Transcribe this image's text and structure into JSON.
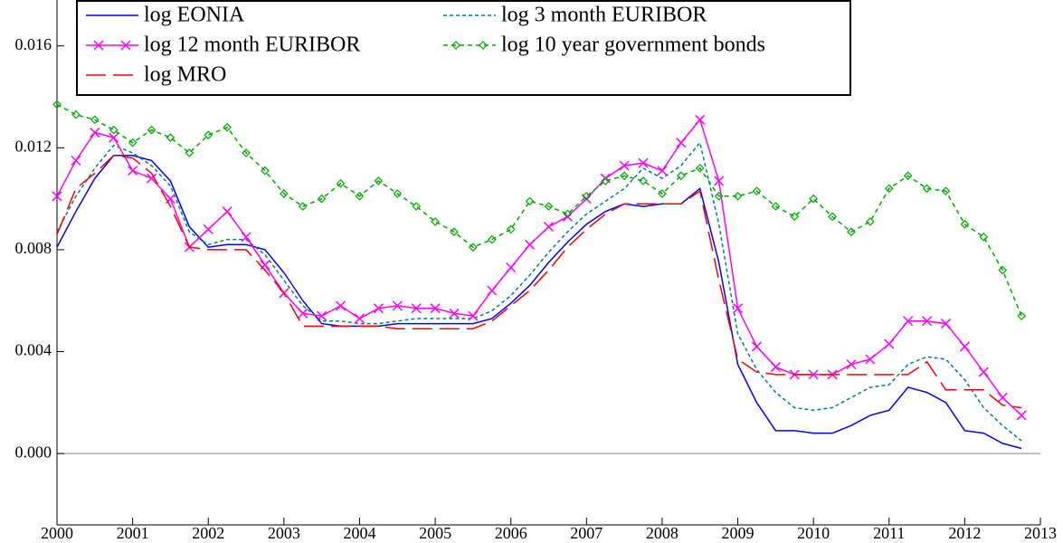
{
  "chart_data": {
    "type": "line",
    "x": [
      2000,
      2000.25,
      2000.5,
      2000.75,
      2001,
      2001.25,
      2001.5,
      2001.75,
      2002,
      2002.25,
      2002.5,
      2002.75,
      2003,
      2003.25,
      2003.5,
      2003.75,
      2004,
      2004.25,
      2004.5,
      2004.75,
      2005,
      2005.25,
      2005.5,
      2005.75,
      2006,
      2006.25,
      2006.5,
      2006.75,
      2007,
      2007.25,
      2007.5,
      2007.75,
      2008,
      2008.25,
      2008.5,
      2008.75,
      2009,
      2009.25,
      2009.5,
      2009.75,
      2010,
      2010.25,
      2010.5,
      2010.75,
      2011,
      2011.25,
      2011.5,
      2011.75,
      2012,
      2012.25,
      2012.5,
      2012.75
    ],
    "series": [
      {
        "name": "log EONIA",
        "color": "#0000ff",
        "line_style": "solid",
        "marker": "none",
        "values": [
          0.0081,
          0.0095,
          0.0108,
          0.0117,
          0.0117,
          0.0115,
          0.0107,
          0.0089,
          0.0081,
          0.0082,
          0.0082,
          0.008,
          0.0071,
          0.006,
          0.0051,
          0.005,
          0.005,
          0.005,
          0.0051,
          0.0051,
          0.0051,
          0.0051,
          0.0051,
          0.0053,
          0.0059,
          0.0066,
          0.0075,
          0.0083,
          0.009,
          0.0095,
          0.0098,
          0.0097,
          0.0098,
          0.0098,
          0.0104,
          0.0075,
          0.0035,
          0.002,
          0.0009,
          0.0009,
          0.0008,
          0.0008,
          0.0011,
          0.0015,
          0.0017,
          0.0026,
          0.0024,
          0.002,
          0.0009,
          0.0008,
          0.0004,
          0.0002
        ]
      },
      {
        "name": "log 3 month EURIBOR",
        "color": "#008080",
        "line_style": "dotted",
        "marker": "none",
        "values": [
          0.0087,
          0.0101,
          0.0112,
          0.0121,
          0.0118,
          0.0113,
          0.0105,
          0.0087,
          0.0082,
          0.0084,
          0.0084,
          0.0078,
          0.0068,
          0.0058,
          0.0052,
          0.0052,
          0.0051,
          0.0051,
          0.0052,
          0.0053,
          0.0053,
          0.0053,
          0.0053,
          0.0056,
          0.0062,
          0.007,
          0.0079,
          0.0087,
          0.0094,
          0.0099,
          0.0104,
          0.0112,
          0.0108,
          0.0113,
          0.0122,
          0.009,
          0.0047,
          0.0033,
          0.0024,
          0.0018,
          0.0017,
          0.0018,
          0.0022,
          0.0026,
          0.0027,
          0.0035,
          0.0038,
          0.0037,
          0.0029,
          0.0018,
          0.0011,
          0.0005
        ]
      },
      {
        "name": "log 12 month EURIBOR",
        "color": "#ff00ff",
        "line_style": "solid",
        "marker": "x",
        "values": [
          0.0101,
          0.0115,
          0.0126,
          0.0124,
          0.0111,
          0.0108,
          0.01,
          0.0081,
          0.0088,
          0.0095,
          0.0085,
          0.0074,
          0.0063,
          0.0055,
          0.0054,
          0.0058,
          0.0053,
          0.0057,
          0.0058,
          0.0057,
          0.0057,
          0.0055,
          0.0054,
          0.0064,
          0.0073,
          0.0082,
          0.0089,
          0.0093,
          0.01,
          0.0108,
          0.0113,
          0.0114,
          0.0111,
          0.0122,
          0.0131,
          0.0107,
          0.0057,
          0.0042,
          0.0034,
          0.0031,
          0.0031,
          0.0031,
          0.0035,
          0.0037,
          0.0043,
          0.0052,
          0.0052,
          0.0051,
          0.0042,
          0.0032,
          0.0022,
          0.0015
        ]
      },
      {
        "name": "log 10 year government bonds",
        "color": "#00aa00",
        "line_style": "dashed",
        "marker": "diamond",
        "values": [
          0.0137,
          0.0133,
          0.0131,
          0.0127,
          0.0122,
          0.0127,
          0.0124,
          0.0118,
          0.0125,
          0.0128,
          0.0118,
          0.0111,
          0.0102,
          0.0097,
          0.01,
          0.0106,
          0.0101,
          0.0107,
          0.0102,
          0.0097,
          0.0091,
          0.0087,
          0.0081,
          0.0084,
          0.0088,
          0.0099,
          0.0097,
          0.0094,
          0.0101,
          0.0107,
          0.0109,
          0.0107,
          0.0102,
          0.0109,
          0.0112,
          0.0101,
          0.0101,
          0.0103,
          0.0097,
          0.0093,
          0.01,
          0.0093,
          0.0087,
          0.0091,
          0.0104,
          0.0109,
          0.0104,
          0.0103,
          0.009,
          0.0085,
          0.0072,
          0.0054
        ]
      },
      {
        "name": "log MRO",
        "color": "#ff0000",
        "line_style": "long-dash",
        "marker": "none",
        "values": [
          0.0086,
          0.0104,
          0.011,
          0.0117,
          0.0116,
          0.011,
          0.0097,
          0.0081,
          0.008,
          0.008,
          0.008,
          0.0072,
          0.0063,
          0.005,
          0.005,
          0.005,
          0.005,
          0.005,
          0.0049,
          0.0049,
          0.0049,
          0.0049,
          0.0049,
          0.0052,
          0.0058,
          0.0064,
          0.0072,
          0.0081,
          0.0088,
          0.0094,
          0.0098,
          0.0098,
          0.0098,
          0.0098,
          0.0103,
          0.0068,
          0.0037,
          0.0032,
          0.0031,
          0.0031,
          0.0031,
          0.0031,
          0.0031,
          0.0031,
          0.0031,
          0.0031,
          0.0036,
          0.0025,
          0.0025,
          0.0025,
          0.0019,
          0.0018
        ]
      }
    ],
    "xlim": [
      2000,
      2013
    ],
    "xticks": [
      2000,
      2001,
      2002,
      2003,
      2004,
      2005,
      2006,
      2007,
      2008,
      2009,
      2010,
      2011,
      2012,
      2013
    ],
    "ylim": [
      -0.0028,
      0.0178
    ],
    "yticks": [
      {
        "value": 0,
        "label": "0.000"
      },
      0.004,
      0.008,
      0.012,
      0.016
    ],
    "zero_line": true,
    "legend": "top-left"
  }
}
